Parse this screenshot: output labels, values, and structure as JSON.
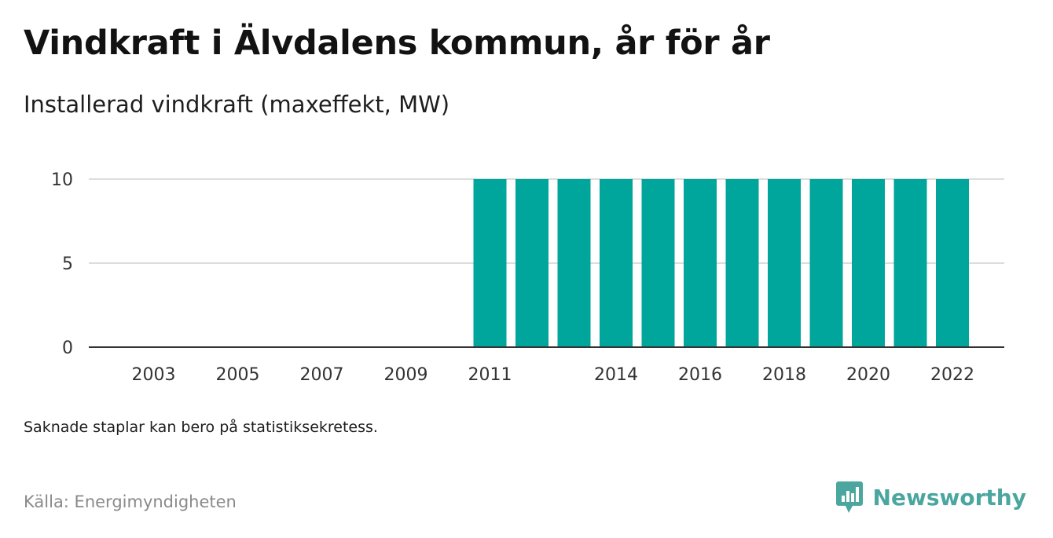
{
  "header": {
    "title": "Vindkraft i Älvdalens kommun, år för år",
    "subtitle": "Installerad vindkraft (maxeffekt, MW)"
  },
  "footer": {
    "note": "Saknade staplar kan bero på statistiksekretess.",
    "source": "Källa: Energimyndigheten",
    "brand": "Newsworthy"
  },
  "colors": {
    "bar": "#00a59b",
    "brand": "#4aa69f",
    "grid": "#dddddd",
    "axis": "#333333"
  },
  "chart_data": {
    "type": "bar",
    "categories": [
      "2002",
      "2003",
      "2004",
      "2005",
      "2006",
      "2007",
      "2008",
      "2009",
      "2010",
      "2011",
      "2012",
      "2013",
      "2014",
      "2015",
      "2016",
      "2017",
      "2018",
      "2019",
      "2020",
      "2021",
      "2022"
    ],
    "x_tick_labels": [
      "2003",
      "2005",
      "2007",
      "2009",
      "2011",
      "2014",
      "2016",
      "2018",
      "2020",
      "2022"
    ],
    "values": [
      null,
      null,
      null,
      null,
      null,
      null,
      null,
      null,
      null,
      10,
      10,
      10,
      10,
      10,
      10,
      10,
      10,
      10,
      10,
      10,
      10
    ],
    "title": "Vindkraft i Älvdalens kommun, år för år",
    "subtitle": "Installerad vindkraft (maxeffekt, MW)",
    "xlabel": "",
    "ylabel": "",
    "ylim": [
      0,
      10
    ],
    "y_ticks": [
      0,
      5,
      10
    ],
    "grid": true,
    "legend": "none"
  }
}
